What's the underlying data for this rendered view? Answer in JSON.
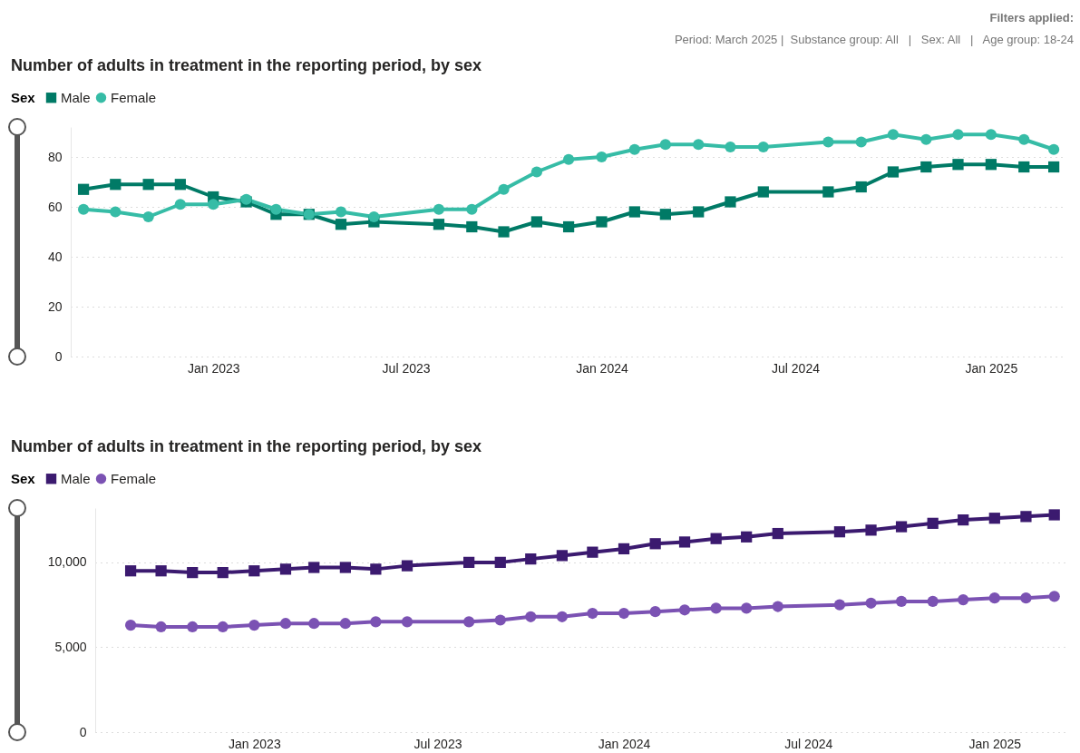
{
  "chart_data": [
    {
      "type": "line",
      "title": "Number of adults in treatment in the reporting period, by sex",
      "legend_title": "Sex",
      "legend": "top left",
      "grid": "y",
      "line_style": "solid",
      "annotations": [
        "Filters applied:",
        "Period: March 2025 |  Substance group: All   |   Sex: All   |   Age group: 18-24"
      ],
      "x": [
        "2022-09",
        "2022-10",
        "2022-11",
        "2022-12",
        "2023-01",
        "2023-02",
        "2023-03",
        "2023-04",
        "2023-05",
        "2023-06",
        "2023-08",
        "2023-09",
        "2023-10",
        "2023-11",
        "2023-12",
        "2024-01",
        "2024-02",
        "2024-03",
        "2024-04",
        "2024-05",
        "2024-06",
        "2024-08",
        "2024-09",
        "2024-10",
        "2024-11",
        "2024-12",
        "2025-01",
        "2025-02",
        "2025-03"
      ],
      "xlim": [
        "2022-08-20",
        "2025-03-12"
      ],
      "xticks": [
        {
          "value": "2023-01",
          "label": "Jan 2023"
        },
        {
          "value": "2023-07",
          "label": "Jul 2023"
        },
        {
          "value": "2024-01",
          "label": "Jan 2024"
        },
        {
          "value": "2024-07",
          "label": "Jul 2024"
        },
        {
          "value": "2025-01",
          "label": "Jan 2025"
        }
      ],
      "ylim": [
        0,
        92
      ],
      "yticks": [
        0,
        20,
        40,
        60,
        80
      ],
      "series": [
        {
          "name": "Male",
          "color": "#007a66",
          "marker": "square",
          "values": [
            67,
            69,
            69,
            69,
            64,
            62,
            57,
            57,
            53,
            54,
            53,
            52,
            50,
            54,
            52,
            54,
            58,
            57,
            58,
            62,
            66,
            66,
            68,
            74,
            76,
            77,
            77,
            76,
            76
          ]
        },
        {
          "name": "Female",
          "color": "#36bca6",
          "marker": "circle",
          "values": [
            59,
            58,
            56,
            61,
            61,
            63,
            59,
            57,
            58,
            56,
            59,
            59,
            67,
            74,
            79,
            80,
            83,
            85,
            85,
            84,
            84,
            86,
            86,
            89,
            87,
            89,
            89,
            87,
            83
          ]
        }
      ]
    },
    {
      "type": "line",
      "title": "Number of adults in treatment in the reporting period, by sex",
      "legend_title": "Sex",
      "legend": "top left",
      "grid": "y",
      "line_style": "solid",
      "x": [
        "2022-09",
        "2022-10",
        "2022-11",
        "2022-12",
        "2023-01",
        "2023-02",
        "2023-03",
        "2023-04",
        "2023-05",
        "2023-06",
        "2023-08",
        "2023-09",
        "2023-10",
        "2023-11",
        "2023-12",
        "2024-01",
        "2024-02",
        "2024-03",
        "2024-04",
        "2024-05",
        "2024-06",
        "2024-08",
        "2024-09",
        "2024-10",
        "2024-11",
        "2024-12",
        "2025-01",
        "2025-02",
        "2025-03"
      ],
      "xlim": [
        "2022-07-28",
        "2025-03-12"
      ],
      "xticks": [
        {
          "value": "2023-01",
          "label": "Jan 2023"
        },
        {
          "value": "2023-07",
          "label": "Jul 2023"
        },
        {
          "value": "2024-01",
          "label": "Jan 2024"
        },
        {
          "value": "2024-07",
          "label": "Jul 2024"
        },
        {
          "value": "2025-01",
          "label": "Jan 2025"
        }
      ],
      "ylim": [
        0,
        13200
      ],
      "yticks": [
        0,
        {
          "value": 5000,
          "label": "5,000"
        },
        {
          "value": 10000,
          "label": "10,000"
        }
      ],
      "series": [
        {
          "name": "Male",
          "color": "#3b1a6f",
          "marker": "square",
          "values": [
            9500,
            9500,
            9400,
            9400,
            9500,
            9600,
            9700,
            9700,
            9600,
            9800,
            10000,
            10000,
            10200,
            10400,
            10600,
            10800,
            11100,
            11200,
            11400,
            11500,
            11700,
            11800,
            11900,
            12100,
            12300,
            12500,
            12600,
            12700,
            12800
          ]
        },
        {
          "name": "Female",
          "color": "#7b52b3",
          "marker": "circle",
          "values": [
            6300,
            6200,
            6200,
            6200,
            6300,
            6400,
            6400,
            6400,
            6500,
            6500,
            6500,
            6600,
            6800,
            6800,
            7000,
            7000,
            7100,
            7200,
            7300,
            7300,
            7400,
            7500,
            7600,
            7700,
            7700,
            7800,
            7900,
            7900,
            8000
          ]
        }
      ]
    }
  ]
}
